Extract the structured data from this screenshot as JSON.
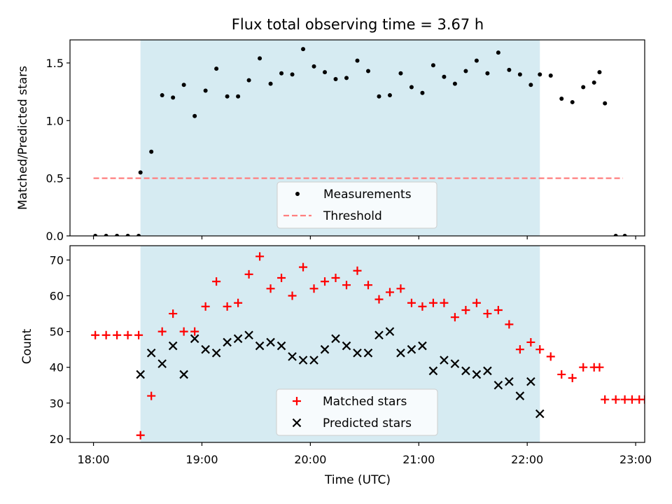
{
  "figure": {
    "title": "Flux total observing time = 3.67 h"
  },
  "chart_data": [
    {
      "type": "scatter",
      "title": "Flux total observing time = 3.67 h",
      "ylabel": "Matched/Predicted stars",
      "ylim": [
        0,
        1.7
      ],
      "yticks": [
        0.0,
        0.5,
        1.0,
        1.5
      ],
      "ytick_labels": [
        "0.0",
        "0.5",
        "1.0",
        "1.5"
      ],
      "shaded_window": {
        "start": "18:26",
        "end": "22:07",
        "color": "#add8e6"
      },
      "legend": {
        "placement": "lower-center",
        "entries": [
          "Measurements",
          "Threshold"
        ]
      },
      "threshold": {
        "name": "Threshold",
        "value": 0.5,
        "x_start": "18:00",
        "x_end": "22:53",
        "color": "#ff7f7f"
      },
      "series": [
        {
          "name": "Measurements",
          "color": "#000000",
          "x": [
            "18:01",
            "18:07",
            "18:13",
            "18:19",
            "18:25",
            "18:26",
            "18:32",
            "18:38",
            "18:44",
            "18:50",
            "18:56",
            "19:02",
            "19:08",
            "19:14",
            "19:20",
            "19:26",
            "19:32",
            "19:38",
            "19:44",
            "19:50",
            "19:56",
            "20:02",
            "20:08",
            "20:14",
            "20:20",
            "20:26",
            "20:32",
            "20:38",
            "20:44",
            "20:50",
            "20:56",
            "21:02",
            "21:08",
            "21:14",
            "21:20",
            "21:26",
            "21:32",
            "21:38",
            "21:44",
            "21:50",
            "21:56",
            "22:02",
            "22:07",
            "22:13",
            "22:19",
            "22:25",
            "22:31",
            "22:37",
            "22:40",
            "22:43",
            "22:49",
            "22:54"
          ],
          "values": [
            0,
            0,
            0,
            0,
            0,
            0.55,
            0.73,
            1.22,
            1.2,
            1.31,
            1.04,
            1.26,
            1.45,
            1.21,
            1.21,
            1.35,
            1.54,
            1.32,
            1.41,
            1.4,
            1.62,
            1.47,
            1.42,
            1.36,
            1.37,
            1.52,
            1.43,
            1.21,
            1.22,
            1.41,
            1.29,
            1.24,
            1.48,
            1.38,
            1.32,
            1.43,
            1.52,
            1.41,
            1.59,
            1.44,
            1.4,
            1.31,
            1.4,
            1.39,
            1.19,
            1.16,
            1.29,
            1.33,
            1.42,
            1.15,
            0,
            0
          ]
        }
      ]
    },
    {
      "type": "scatter",
      "xlabel": "Time (UTC)",
      "ylabel": "Count",
      "ylim": [
        19,
        74
      ],
      "yticks": [
        20,
        30,
        40,
        50,
        60,
        70
      ],
      "ytick_labels": [
        "20",
        "30",
        "40",
        "50",
        "60",
        "70"
      ],
      "xlim": [
        "17:47",
        "23:05"
      ],
      "xticks": [
        "18:00",
        "19:00",
        "20:00",
        "21:00",
        "22:00",
        "23:00"
      ],
      "xtick_labels": [
        "18:00",
        "19:00",
        "20:00",
        "21:00",
        "22:00",
        "23:00"
      ],
      "shaded_window": {
        "start": "18:26",
        "end": "22:07",
        "color": "#add8e6"
      },
      "legend": {
        "placement": "lower-center",
        "entries": [
          "Matched stars",
          "Predicted stars"
        ]
      },
      "series": [
        {
          "name": "Matched stars",
          "marker": "plus",
          "color": "#ff0000",
          "x": [
            "18:01",
            "18:07",
            "18:13",
            "18:19",
            "18:25",
            "18:26",
            "18:32",
            "18:38",
            "18:44",
            "18:50",
            "18:56",
            "19:02",
            "19:08",
            "19:14",
            "19:20",
            "19:26",
            "19:32",
            "19:38",
            "19:44",
            "19:50",
            "19:56",
            "20:02",
            "20:08",
            "20:14",
            "20:20",
            "20:26",
            "20:32",
            "20:38",
            "20:44",
            "20:50",
            "20:56",
            "21:02",
            "21:08",
            "21:14",
            "21:20",
            "21:26",
            "21:32",
            "21:38",
            "21:44",
            "21:50",
            "21:56",
            "22:02",
            "22:07",
            "22:13",
            "22:19",
            "22:25",
            "22:31",
            "22:37",
            "22:40",
            "22:43",
            "22:49",
            "22:54",
            "22:58",
            "23:02",
            "23:05"
          ],
          "values": [
            49,
            49,
            49,
            49,
            49,
            21,
            32,
            50,
            55,
            50,
            50,
            57,
            64,
            57,
            58,
            66,
            71,
            62,
            65,
            60,
            68,
            62,
            64,
            65,
            63,
            67,
            63,
            59,
            61,
            62,
            58,
            57,
            58,
            58,
            54,
            56,
            58,
            55,
            56,
            52,
            45,
            47,
            45,
            43,
            38,
            37,
            40,
            40,
            40,
            31,
            31,
            31,
            31,
            31,
            31
          ]
        },
        {
          "name": "Predicted stars",
          "marker": "x",
          "color": "#000000",
          "x": [
            "18:26",
            "18:32",
            "18:38",
            "18:44",
            "18:50",
            "18:56",
            "19:02",
            "19:08",
            "19:14",
            "19:20",
            "19:26",
            "19:32",
            "19:38",
            "19:44",
            "19:50",
            "19:56",
            "20:02",
            "20:08",
            "20:14",
            "20:20",
            "20:26",
            "20:32",
            "20:38",
            "20:44",
            "20:50",
            "20:56",
            "21:02",
            "21:08",
            "21:14",
            "21:20",
            "21:26",
            "21:32",
            "21:38",
            "21:44",
            "21:50",
            "21:56",
            "22:02",
            "22:07"
          ],
          "values": [
            38,
            44,
            41,
            46,
            38,
            48,
            45,
            44,
            47,
            48,
            49,
            46,
            47,
            46,
            43,
            42,
            42,
            45,
            48,
            46,
            44,
            44,
            49,
            50,
            44,
            45,
            46,
            39,
            42,
            41,
            39,
            38,
            39,
            35,
            36,
            32,
            36,
            27
          ]
        }
      ]
    }
  ],
  "colors": {
    "shade": "#add8e6",
    "threshold": "#ff7f7f",
    "matched": "#ff0000",
    "predicted": "#000000",
    "measurement": "#000000"
  }
}
